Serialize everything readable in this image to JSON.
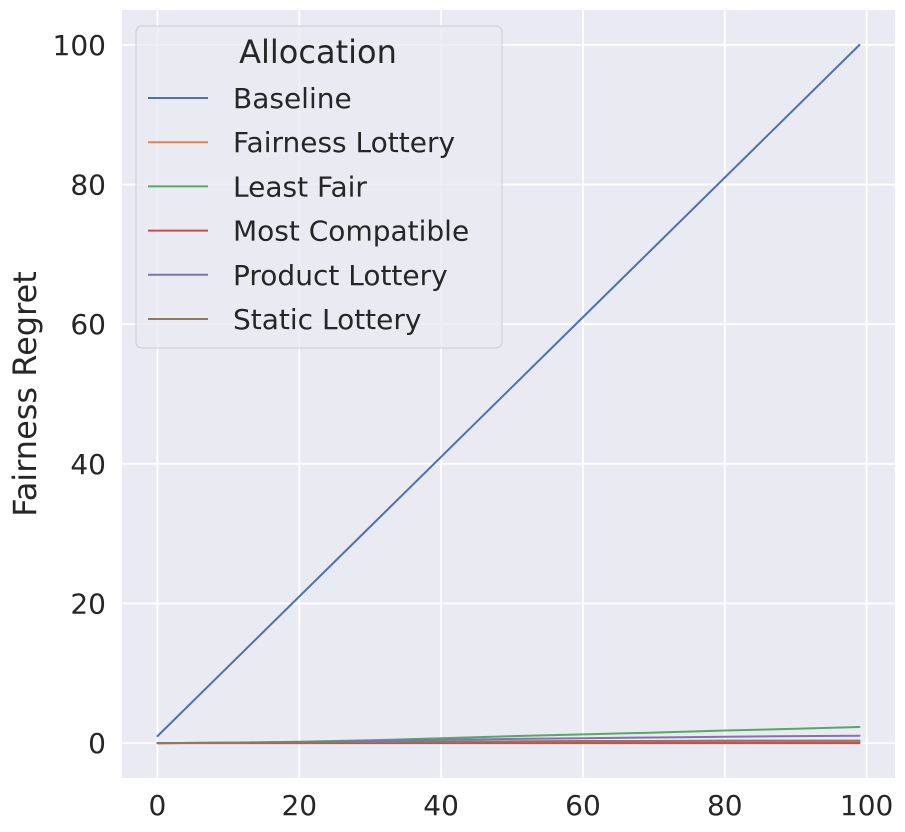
{
  "chart_data": {
    "type": "line",
    "title": "",
    "xlabel": "",
    "ylabel": "Fairness Regret",
    "xlim": [
      -5,
      104
    ],
    "ylim": [
      -5,
      105
    ],
    "xticks": [
      0,
      20,
      40,
      60,
      80,
      100
    ],
    "yticks": [
      0,
      20,
      40,
      60,
      80,
      100
    ],
    "grid": true,
    "legend": {
      "title": "Allocation",
      "placement": "top-left"
    },
    "series": [
      {
        "name": "Baseline",
        "color": "#4c72b0",
        "x": [
          0,
          99
        ],
        "y": [
          1,
          100
        ]
      },
      {
        "name": "Fairness Lottery",
        "color": "#dd8452",
        "x": [
          0,
          20,
          40,
          60,
          80,
          99
        ],
        "y": [
          0,
          0.1,
          0.1,
          0.1,
          0.1,
          0.1
        ]
      },
      {
        "name": "Least Fair",
        "color": "#55a868",
        "x": [
          0,
          10,
          20,
          30,
          40,
          50,
          60,
          70,
          80,
          90,
          99
        ],
        "y": [
          0,
          0.05,
          0.2,
          0.4,
          0.7,
          1.0,
          1.25,
          1.5,
          1.8,
          2.05,
          2.3
        ]
      },
      {
        "name": "Most Compatible",
        "color": "#c44e52",
        "x": [
          0,
          20,
          40,
          60,
          80,
          99
        ],
        "y": [
          0,
          0,
          0,
          0,
          0,
          0
        ]
      },
      {
        "name": "Product Lottery",
        "color": "#8172b3",
        "x": [
          0,
          10,
          20,
          30,
          40,
          50,
          60,
          70,
          80,
          90,
          99
        ],
        "y": [
          0,
          0.05,
          0.15,
          0.3,
          0.45,
          0.6,
          0.7,
          0.8,
          0.9,
          1.0,
          1.05
        ]
      },
      {
        "name": "Static Lottery",
        "color": "#937860",
        "x": [
          0,
          10,
          20,
          30,
          40,
          50,
          60,
          70,
          80,
          90,
          99
        ],
        "y": [
          0,
          0.05,
          0.1,
          0.15,
          0.2,
          0.25,
          0.3,
          0.3,
          0.35,
          0.35,
          0.35
        ]
      }
    ]
  }
}
